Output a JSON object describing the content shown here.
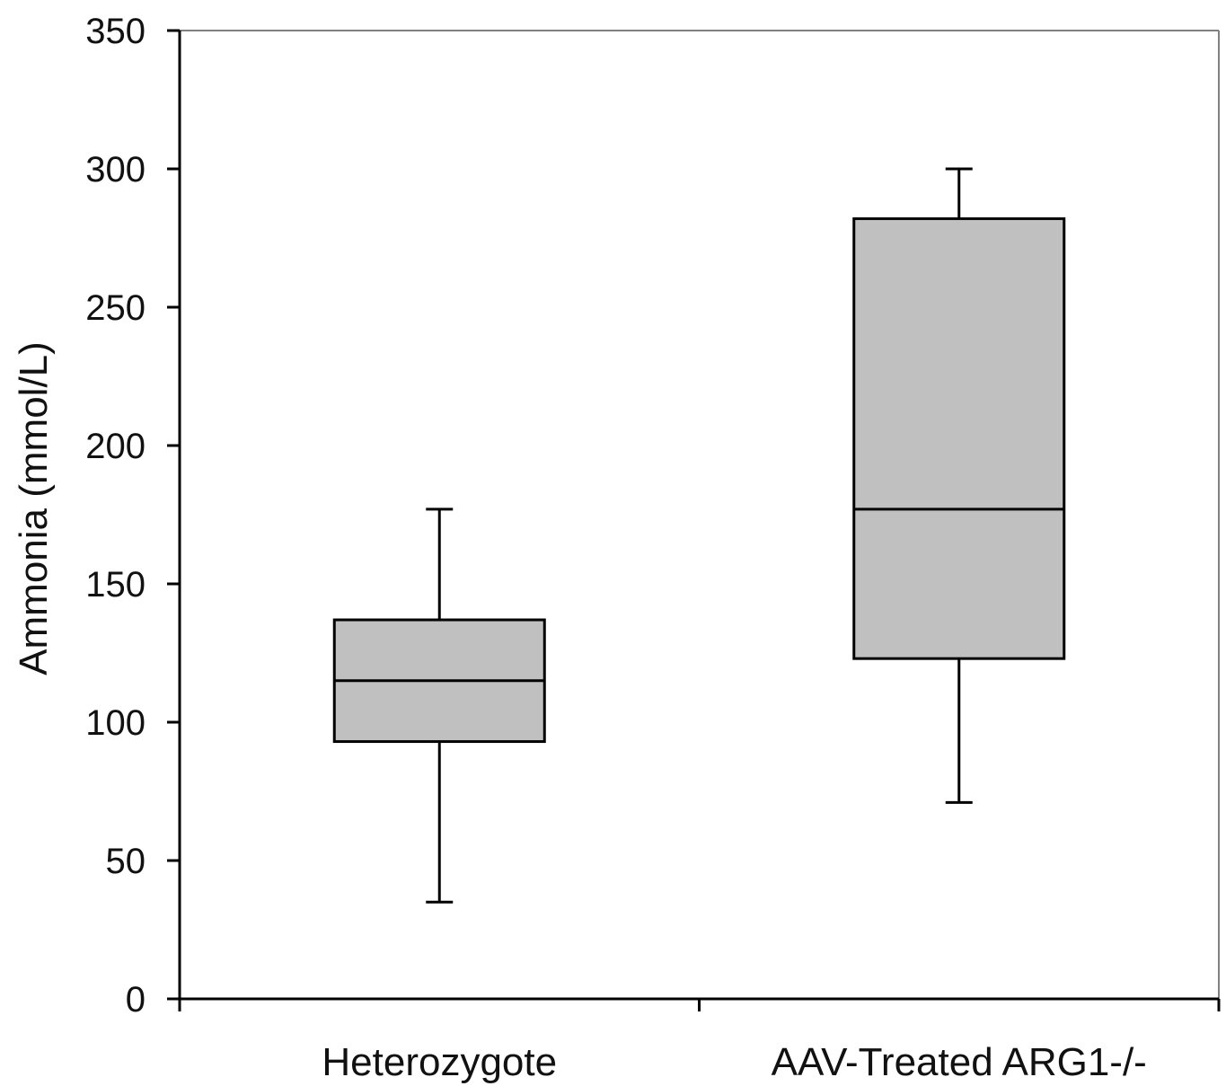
{
  "chart_data": {
    "type": "box",
    "title": "",
    "xlabel": "",
    "ylabel": "Ammonia (mmol/L)",
    "ylim": [
      0,
      350
    ],
    "y_ticks": [
      0,
      50,
      100,
      150,
      200,
      250,
      300,
      350
    ],
    "y_tick_labels": [
      "0",
      "50",
      "100",
      "150",
      "200",
      "250",
      "300",
      "350"
    ],
    "grid": false,
    "legend": "none",
    "categories": [
      "Heterozygote",
      "AAV-Treated ARG1-/-"
    ],
    "boxes": [
      {
        "category": "Heterozygote",
        "min": 35,
        "q1": 93,
        "median": 115,
        "q3": 137,
        "max": 177
      },
      {
        "category": "AAV-Treated ARG1-/-",
        "min": 71,
        "q1": 123,
        "median": 177,
        "q3": 282,
        "max": 300
      }
    ],
    "colors": {
      "box_fill": "#c0c0c0",
      "line": "#000000",
      "plot_border": "#808080"
    }
  }
}
